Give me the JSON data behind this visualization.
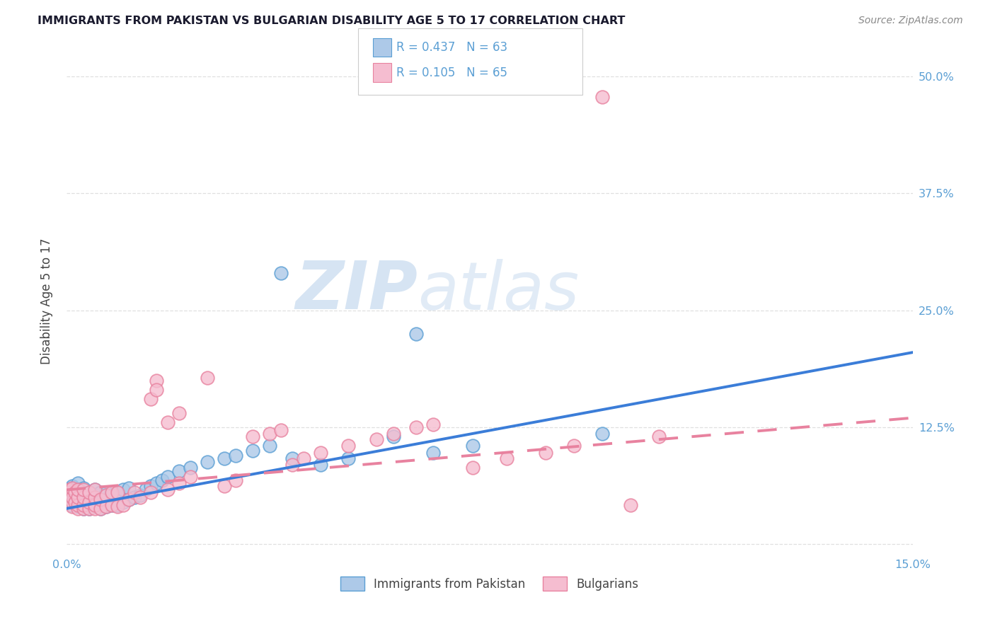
{
  "title": "IMMIGRANTS FROM PAKISTAN VS BULGARIAN DISABILITY AGE 5 TO 17 CORRELATION CHART",
  "source": "Source: ZipAtlas.com",
  "ylabel_label": "Disability Age 5 to 17",
  "x_min": 0.0,
  "x_max": 0.15,
  "y_min": -0.01,
  "y_max": 0.53,
  "pakistan_color": "#adc9e8",
  "pakistan_edge_color": "#5b9fd4",
  "bulgarian_color": "#f5bdd0",
  "bulgarian_edge_color": "#e8829f",
  "trend_pakistan_color": "#3b7dd8",
  "trend_bulgarian_color": "#e8829f",
  "R_pakistan": 0.437,
  "N_pakistan": 63,
  "R_bulgarian": 0.105,
  "N_bulgarian": 65,
  "legend_label_pakistan": "Immigrants from Pakistan",
  "legend_label_bulgarian": "Bulgarians",
  "watermark_zip": "ZIP",
  "watermark_atlas": "atlas",
  "tick_label_color_blue": "#5b9fd4",
  "background_color": "#ffffff",
  "grid_color": "#d8d8d8",
  "axis_label_color": "#444444",
  "trend_pak_x0": 0.0,
  "trend_pak_x1": 0.15,
  "trend_pak_y0": 0.038,
  "trend_pak_y1": 0.205,
  "trend_bul_x0": 0.0,
  "trend_bul_x1": 0.15,
  "trend_bul_y0": 0.058,
  "trend_bul_y1": 0.135,
  "pakistan_x": [
    0.0005,
    0.0007,
    0.001,
    0.001,
    0.001,
    0.001,
    0.0015,
    0.0015,
    0.002,
    0.002,
    0.002,
    0.002,
    0.002,
    0.003,
    0.003,
    0.003,
    0.003,
    0.003,
    0.004,
    0.004,
    0.004,
    0.004,
    0.005,
    0.005,
    0.005,
    0.005,
    0.006,
    0.006,
    0.006,
    0.007,
    0.007,
    0.007,
    0.008,
    0.008,
    0.009,
    0.009,
    0.01,
    0.01,
    0.011,
    0.011,
    0.012,
    0.013,
    0.014,
    0.015,
    0.016,
    0.017,
    0.018,
    0.02,
    0.022,
    0.025,
    0.028,
    0.03,
    0.033,
    0.036,
    0.04,
    0.045,
    0.05,
    0.058,
    0.065,
    0.072,
    0.038,
    0.062,
    0.095
  ],
  "pakistan_y": [
    0.055,
    0.06,
    0.042,
    0.048,
    0.055,
    0.062,
    0.045,
    0.058,
    0.04,
    0.045,
    0.05,
    0.058,
    0.065,
    0.038,
    0.042,
    0.048,
    0.055,
    0.06,
    0.038,
    0.042,
    0.048,
    0.055,
    0.04,
    0.045,
    0.052,
    0.058,
    0.038,
    0.045,
    0.055,
    0.04,
    0.048,
    0.055,
    0.042,
    0.052,
    0.042,
    0.055,
    0.045,
    0.058,
    0.048,
    0.06,
    0.05,
    0.052,
    0.058,
    0.062,
    0.065,
    0.068,
    0.072,
    0.078,
    0.082,
    0.088,
    0.092,
    0.095,
    0.1,
    0.105,
    0.092,
    0.085,
    0.092,
    0.115,
    0.098,
    0.105,
    0.29,
    0.225,
    0.118
  ],
  "bulgarian_x": [
    0.0003,
    0.0005,
    0.001,
    0.001,
    0.001,
    0.001,
    0.0015,
    0.0015,
    0.002,
    0.002,
    0.002,
    0.002,
    0.003,
    0.003,
    0.003,
    0.003,
    0.004,
    0.004,
    0.004,
    0.005,
    0.005,
    0.005,
    0.005,
    0.006,
    0.006,
    0.007,
    0.007,
    0.008,
    0.008,
    0.009,
    0.009,
    0.01,
    0.011,
    0.012,
    0.013,
    0.015,
    0.016,
    0.018,
    0.02,
    0.022,
    0.025,
    0.028,
    0.03,
    0.033,
    0.036,
    0.038,
    0.04,
    0.042,
    0.045,
    0.05,
    0.055,
    0.058,
    0.062,
    0.065,
    0.072,
    0.078,
    0.085,
    0.09,
    0.095,
    0.1,
    0.015,
    0.016,
    0.018,
    0.02,
    0.105
  ],
  "bulgarian_y": [
    0.055,
    0.058,
    0.04,
    0.045,
    0.05,
    0.06,
    0.045,
    0.055,
    0.038,
    0.042,
    0.05,
    0.058,
    0.038,
    0.042,
    0.05,
    0.058,
    0.038,
    0.045,
    0.055,
    0.038,
    0.042,
    0.05,
    0.058,
    0.038,
    0.048,
    0.04,
    0.052,
    0.042,
    0.055,
    0.04,
    0.055,
    0.042,
    0.048,
    0.055,
    0.05,
    0.055,
    0.175,
    0.058,
    0.065,
    0.072,
    0.178,
    0.062,
    0.068,
    0.115,
    0.118,
    0.122,
    0.085,
    0.092,
    0.098,
    0.105,
    0.112,
    0.118,
    0.125,
    0.128,
    0.082,
    0.092,
    0.098,
    0.105,
    0.478,
    0.042,
    0.155,
    0.165,
    0.13,
    0.14,
    0.115
  ]
}
